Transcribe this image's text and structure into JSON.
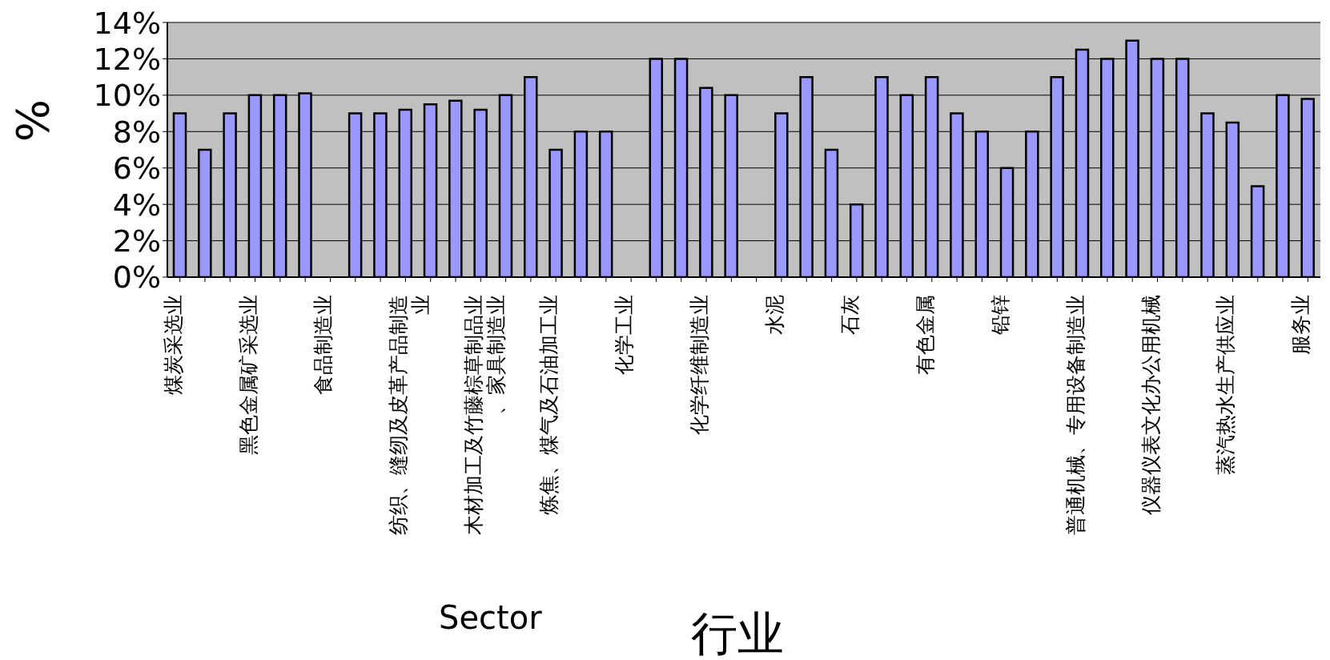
{
  "chart_data": {
    "type": "bar",
    "xlabel": "行业",
    "ylabel": "%",
    "annotations": [
      "Sector"
    ],
    "categories": [
      "煤炭采选业",
      null,
      null,
      "黑色金属矿采选业",
      null,
      null,
      "食品制造业",
      null,
      null,
      "纺织、缝纫及皮革产品制造业",
      null,
      null,
      "木材加工及竹藤棕草制品业、家具制造业",
      null,
      null,
      "炼焦、煤气及石油加工业",
      null,
      null,
      "化学工业",
      null,
      null,
      "化学纤维制造业",
      null,
      null,
      "水泥",
      null,
      null,
      "石灰",
      null,
      null,
      "有色金属",
      null,
      null,
      "铅锌",
      null,
      null,
      "普通机械、专用设备制造业",
      null,
      null,
      "仪器仪表文化办公用机械",
      null,
      null,
      "蒸汽热水生产供应业",
      null,
      null,
      "服务业"
    ],
    "values": [
      9,
      7,
      9,
      10,
      10,
      10.1,
      null,
      9,
      9,
      9.2,
      9.5,
      9.7,
      9.2,
      10,
      11,
      7,
      8,
      8,
      null,
      12,
      12,
      10.4,
      10,
      null,
      9,
      11,
      7,
      4,
      11,
      10,
      11,
      9,
      8,
      6,
      8,
      11,
      12.5,
      12,
      13,
      12,
      12,
      9,
      8.5,
      5,
      10,
      9.8
    ],
    "color": "#9999ff",
    "ylim": [
      0,
      14
    ],
    "yticks": [
      {
        "value": 0,
        "label": "0%"
      },
      {
        "value": 2,
        "label": "2%"
      },
      {
        "value": 4,
        "label": "4%"
      },
      {
        "value": 6,
        "label": "6%"
      },
      {
        "value": 8,
        "label": "8%"
      },
      {
        "value": 10,
        "label": "10%"
      },
      {
        "value": 12,
        "label": "12%"
      },
      {
        "value": 14,
        "label": "14%"
      }
    ],
    "grid": "y",
    "legend": false
  }
}
